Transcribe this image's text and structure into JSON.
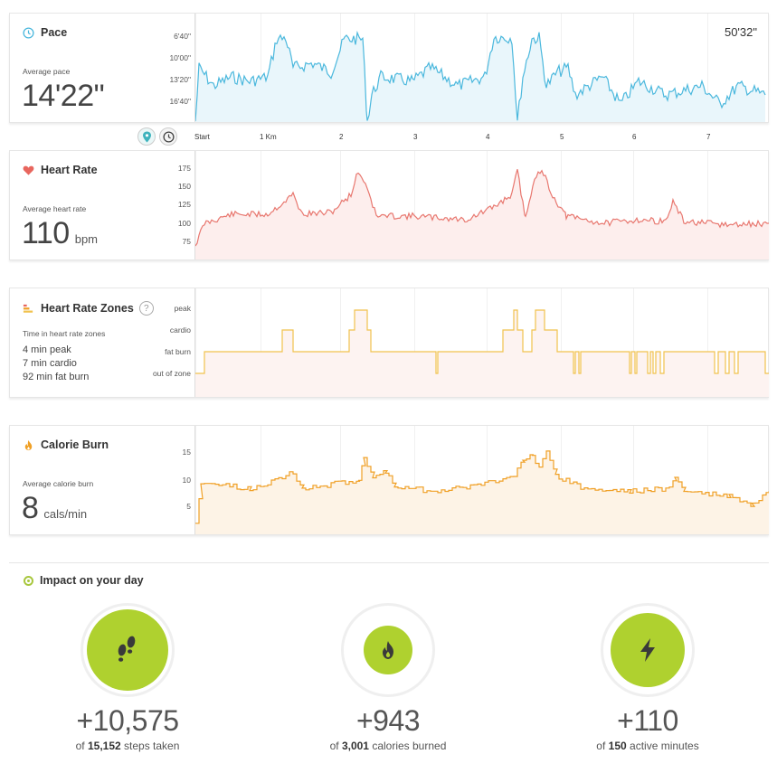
{
  "elapsed_time": "50'32\"",
  "toggles": [
    {
      "name": "map-pin-icon",
      "active": true
    },
    {
      "name": "clock-icon",
      "active": false
    }
  ],
  "x_axis": {
    "labels": [
      "Start",
      "1 Km",
      "2",
      "3",
      "4",
      "5",
      "6",
      "7"
    ]
  },
  "pace": {
    "title": "Pace",
    "avg_label": "Average pace",
    "value": "14'22\"",
    "color": "#4bb8dd",
    "fill": "#e9f6fb",
    "yticks": [
      "6'40\"",
      "10'00\"",
      "13'20\"",
      "16'40\""
    ]
  },
  "heart_rate": {
    "title": "Heart Rate",
    "avg_label": "Average heart rate",
    "value": "110",
    "unit": "bpm",
    "color": "#e8776f",
    "fill": "#fdeeed",
    "yticks": [
      "175",
      "150",
      "125",
      "100",
      "75"
    ]
  },
  "zones": {
    "title": "Heart Rate Zones",
    "help": "?",
    "subtitle": "Time in heart rate zones",
    "lines": [
      "4 min peak",
      "7 min cardio",
      "92 min fat burn"
    ],
    "color": "#f1c24e",
    "fill": "#fdf3f1",
    "yticks": [
      "peak",
      "cardio",
      "fat burn",
      "out of zone"
    ]
  },
  "calories": {
    "title": "Calorie Burn",
    "avg_label": "Average calorie burn",
    "value": "8",
    "unit": "cals/min",
    "color": "#f0a026",
    "fill": "#fdf3e6",
    "yticks": [
      "15",
      "10",
      "5"
    ]
  },
  "impact": {
    "title": "Impact on your day",
    "stats": [
      {
        "icon": "footsteps-icon",
        "value": "+10,575",
        "prefix": "of",
        "total": "15,152",
        "suffix": "steps taken"
      },
      {
        "icon": "flame-icon",
        "value": "+943",
        "prefix": "of",
        "total": "3,001",
        "suffix": "calories burned"
      },
      {
        "icon": "lightning-icon",
        "value": "+110",
        "prefix": "of",
        "total": "150",
        "suffix": "active minutes"
      }
    ]
  }
}
